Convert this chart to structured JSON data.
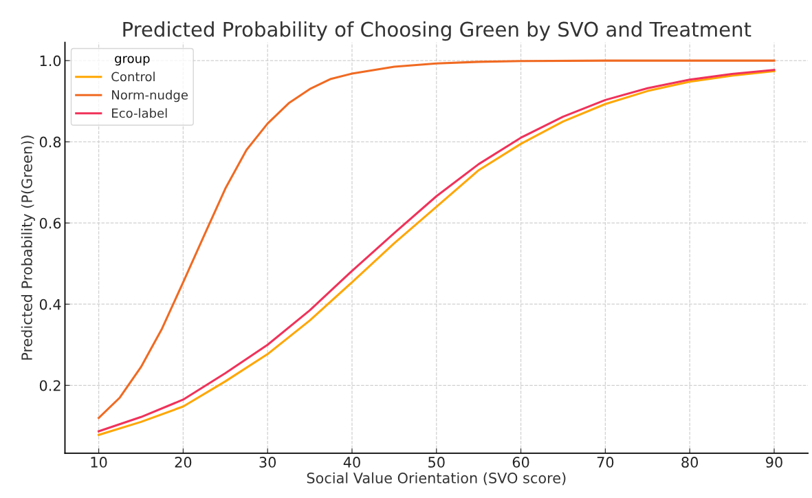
{
  "chart_data": {
    "type": "line",
    "title": "Predicted Probability of Choosing Green by SVO and Treatment",
    "xlabel": "Social Value Orientation (SVO score)",
    "ylabel": "Predicted Probability (P(Green))",
    "legend_title": "group",
    "legend": "top left",
    "grid": true,
    "line_style": "solid",
    "marker": "none",
    "xlim": [
      6,
      94
    ],
    "ylim": [
      0.033,
      1.045
    ],
    "xticks": [
      10,
      20,
      30,
      40,
      50,
      60,
      70,
      80,
      90
    ],
    "yticks": [
      {
        "value": 0.2,
        "label": "0.2"
      },
      {
        "value": 0.4,
        "label": "0.4"
      },
      {
        "value": 0.6,
        "label": "0.6"
      },
      {
        "value": 0.8,
        "label": "0.8"
      },
      {
        "value": 1.0,
        "label": "1.0"
      }
    ],
    "series": [
      {
        "name": "Control",
        "color": "#ffa600",
        "x": [
          10,
          15,
          20,
          25,
          30,
          35,
          40,
          45,
          50,
          55,
          60,
          65,
          70,
          75,
          80,
          85,
          90
        ],
        "values": [
          0.078,
          0.11,
          0.148,
          0.21,
          0.277,
          0.36,
          0.454,
          0.55,
          0.64,
          0.73,
          0.795,
          0.85,
          0.893,
          0.925,
          0.948,
          0.963,
          0.974
        ]
      },
      {
        "name": "Norm-nudge",
        "color": "#f06a22",
        "x": [
          10,
          12.5,
          15,
          17.5,
          20,
          22.5,
          25,
          27.5,
          30,
          32.5,
          35,
          37.5,
          40,
          45,
          50,
          55,
          60,
          70,
          80,
          90
        ],
        "values": [
          0.12,
          0.17,
          0.245,
          0.34,
          0.454,
          0.57,
          0.685,
          0.78,
          0.845,
          0.895,
          0.93,
          0.955,
          0.968,
          0.985,
          0.993,
          0.997,
          0.999,
          1.0,
          1.0,
          1.0
        ]
      },
      {
        "name": "Eco-label",
        "color": "#f0325a",
        "x": [
          10,
          15,
          20,
          25,
          30,
          35,
          40,
          45,
          50,
          55,
          60,
          65,
          70,
          75,
          80,
          85,
          90
        ],
        "values": [
          0.087,
          0.122,
          0.165,
          0.23,
          0.3,
          0.385,
          0.482,
          0.575,
          0.666,
          0.745,
          0.81,
          0.862,
          0.903,
          0.932,
          0.953,
          0.967,
          0.977
        ]
      }
    ]
  }
}
